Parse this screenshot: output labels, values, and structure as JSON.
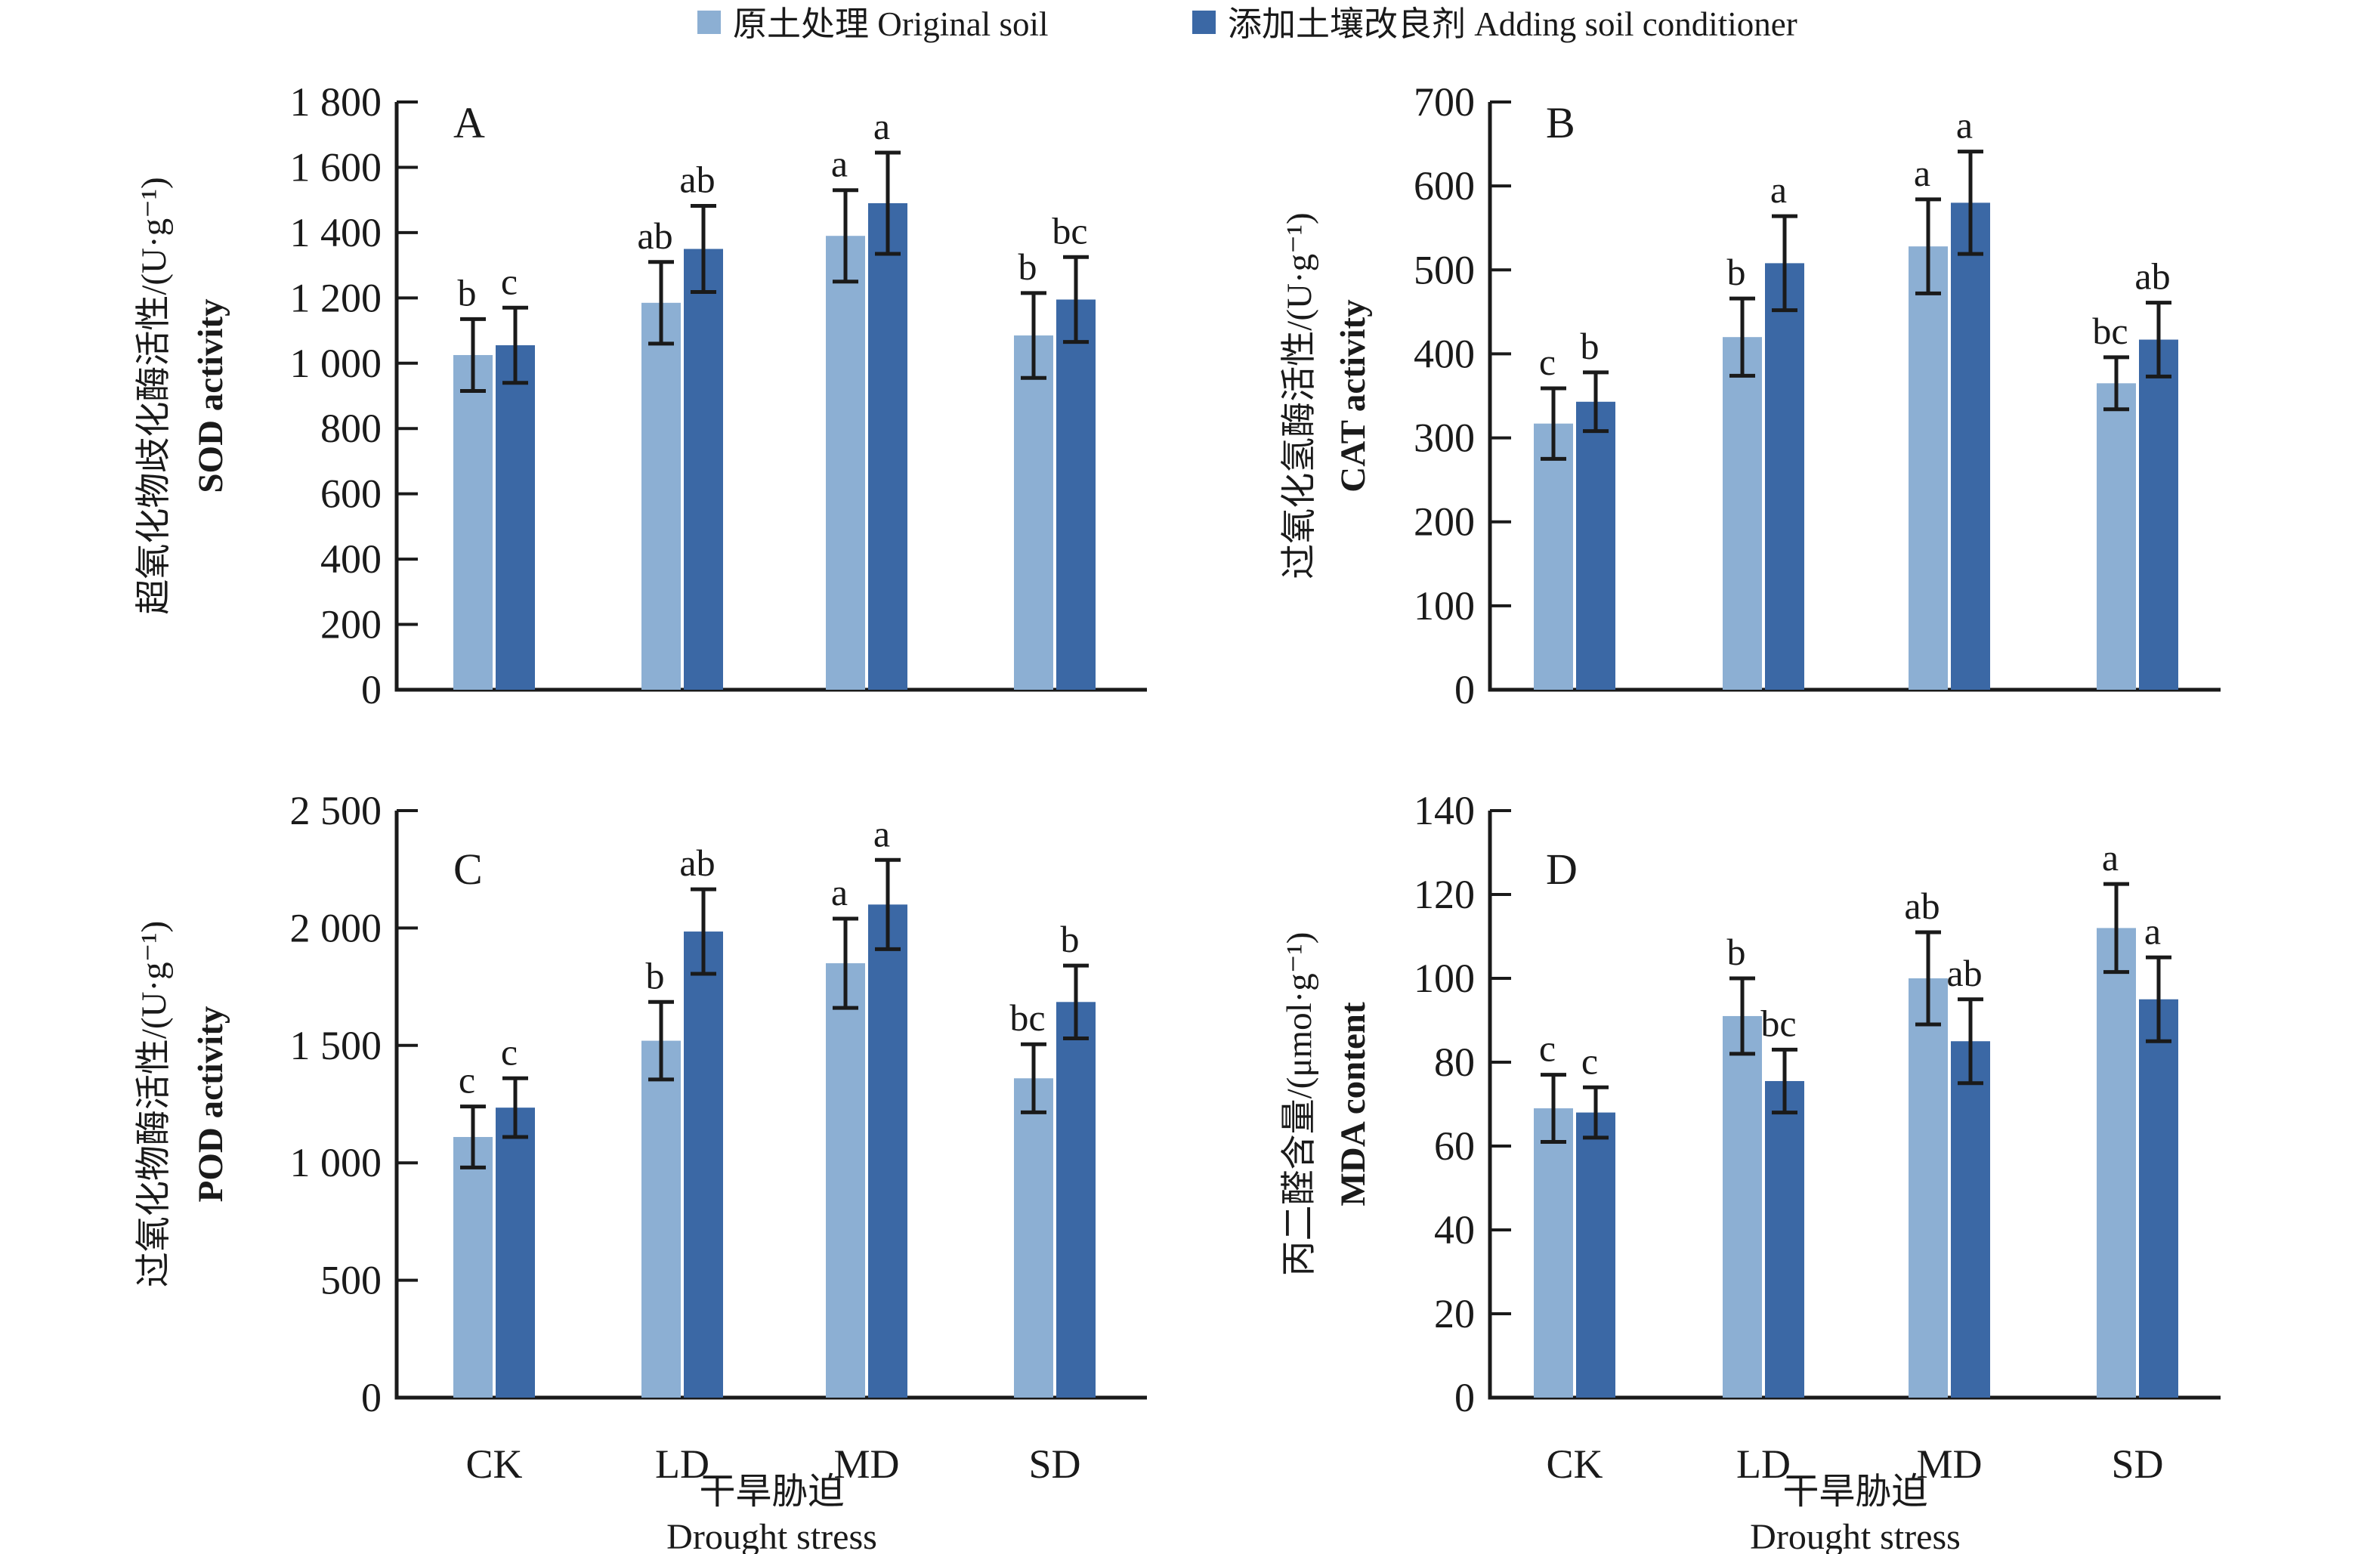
{
  "figure": {
    "background": "#ffffff",
    "axis_color": "#1a1a1a"
  },
  "legend": {
    "items": [
      {
        "label": "原土处理 Original soil",
        "color": "#8CAFD3",
        "series": "original"
      },
      {
        "label": "添加土壤改良剂 Adding soil conditioner",
        "color": "#3B68A5",
        "series": "conditioner"
      }
    ]
  },
  "categories": [
    "CK",
    "LD",
    "MD",
    "SD"
  ],
  "xlabel": {
    "zh": "干旱胁迫",
    "en": "Drought stress"
  },
  "chart_data": [
    {
      "panel": "A",
      "type": "bar",
      "title": "SOD activity",
      "ylabel_zh": "超氧化物歧化酶活性/(U·g⁻¹)",
      "ylabel_en": "SOD activity",
      "xlabel_zh": "干旱胁迫",
      "xlabel_en": "Drought stress",
      "categories": [
        "CK",
        "LD",
        "MD",
        "SD"
      ],
      "ylim": [
        0,
        1800
      ],
      "ytick_step": 200,
      "grid": false,
      "series": [
        {
          "name": "原土处理 Original soil",
          "values": [
            1025,
            1185,
            1390,
            1085
          ],
          "errors": [
            110,
            125,
            140,
            130
          ],
          "letters": [
            "b",
            "ab",
            "a",
            "b"
          ]
        },
        {
          "name": "添加土壤改良剂 Adding soil conditioner",
          "values": [
            1055,
            1350,
            1490,
            1195
          ],
          "errors": [
            115,
            132,
            155,
            130
          ],
          "letters": [
            "c",
            "ab",
            "a",
            "bc"
          ]
        }
      ]
    },
    {
      "panel": "B",
      "type": "bar",
      "title": "CAT activity",
      "ylabel_zh": "过氧化氢酶活性/(U·g⁻¹)",
      "ylabel_en": "CAT activity",
      "xlabel_zh": "干旱胁迫",
      "xlabel_en": "Drought stress",
      "categories": [
        "CK",
        "LD",
        "MD",
        "SD"
      ],
      "ylim": [
        0,
        700
      ],
      "ytick_step": 100,
      "grid": false,
      "series": [
        {
          "name": "原土处理 Original soil",
          "values": [
            317,
            420,
            528,
            365
          ],
          "errors": [
            42,
            46,
            56,
            31
          ],
          "letters": [
            "c",
            "b",
            "a",
            "bc"
          ]
        },
        {
          "name": "添加土壤改良剂 Adding soil conditioner",
          "values": [
            343,
            508,
            580,
            417
          ],
          "errors": [
            35,
            56,
            61,
            44
          ],
          "letters": [
            "b",
            "a",
            "a",
            "ab"
          ]
        }
      ]
    },
    {
      "panel": "C",
      "type": "bar",
      "title": "POD activity",
      "ylabel_zh": "过氧化物酶活性/(U·g⁻¹)",
      "ylabel_en": "POD activity",
      "xlabel_zh": "干旱胁迫",
      "xlabel_en": "Drought stress",
      "categories": [
        "CK",
        "LD",
        "MD",
        "SD"
      ],
      "ylim": [
        0,
        2500
      ],
      "ytick_step": 500,
      "grid": false,
      "series": [
        {
          "name": "原土处理 Original soil",
          "values": [
            1110,
            1520,
            1850,
            1360
          ],
          "errors": [
            130,
            165,
            190,
            145
          ],
          "letters": [
            "c",
            "b",
            "a",
            "bc"
          ]
        },
        {
          "name": "添加土壤改良剂 Adding soil conditioner",
          "values": [
            1235,
            1985,
            2100,
            1685
          ],
          "errors": [
            125,
            180,
            190,
            155
          ],
          "letters": [
            "c",
            "ab",
            "a",
            "b"
          ]
        }
      ]
    },
    {
      "panel": "D",
      "type": "bar",
      "title": "MDA content",
      "ylabel_zh": "丙二醛含量/(μmol·g⁻¹)",
      "ylabel_en": "MDA content",
      "xlabel_zh": "干旱胁迫",
      "xlabel_en": "Drought stress",
      "categories": [
        "CK",
        "LD",
        "MD",
        "SD"
      ],
      "ylim": [
        0,
        140
      ],
      "ytick_step": 20,
      "grid": false,
      "series": [
        {
          "name": "原土处理 Original soil",
          "values": [
            69,
            91,
            100,
            112
          ],
          "errors": [
            8,
            9,
            11,
            10.5
          ],
          "letters": [
            "c",
            "b",
            "ab",
            "a"
          ]
        },
        {
          "name": "添加土壤改良剂 Adding soil conditioner",
          "values": [
            68,
            75.5,
            85,
            95
          ],
          "errors": [
            6,
            7.5,
            10,
            10
          ],
          "letters": [
            "c",
            "bc",
            "ab",
            "a"
          ]
        }
      ]
    }
  ]
}
